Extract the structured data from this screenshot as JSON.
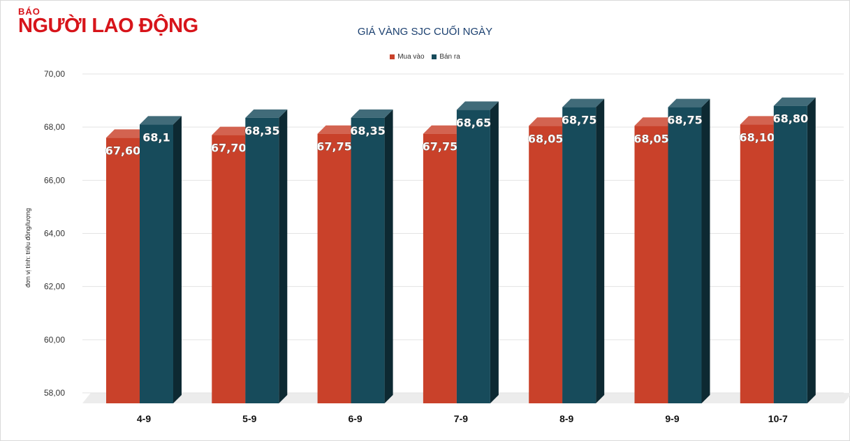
{
  "logo": {
    "top": "BÁO",
    "main": "NGƯỜI LAO ĐỘNG"
  },
  "colors": {
    "buy": "#c9412a",
    "sell": "#174b5b",
    "title": "#1a3f6f",
    "logo": "#d7141a"
  },
  "chart_data": {
    "type": "bar",
    "title": "GIÁ VÀNG SJC CUỐI NGÀY",
    "xlabel": "",
    "ylabel": "đơn vị tính: triệu đồng/lượng",
    "ylim": [
      58,
      70
    ],
    "yticks": [
      "70,00",
      "68,00",
      "66,00",
      "64,00",
      "62,00",
      "60,00",
      "58,00"
    ],
    "grid": true,
    "legend_position": "top-center",
    "categories": [
      "4-9",
      "5-9",
      "6-9",
      "7-9",
      "8-9",
      "9-9",
      "10-7"
    ],
    "series": [
      {
        "name": "Mua vào",
        "values": [
          67.6,
          67.7,
          67.75,
          67.75,
          68.05,
          68.05,
          68.1
        ],
        "labels": [
          "67,60",
          "67,70",
          "67,75",
          "67,75",
          "68,05",
          "68,05",
          "68,10"
        ]
      },
      {
        "name": "Bán ra",
        "values": [
          68.1,
          68.35,
          68.35,
          68.65,
          68.75,
          68.75,
          68.8
        ],
        "labels": [
          "68,1",
          "68,35",
          "68,35",
          "68,65",
          "68,75",
          "68,75",
          "68,80"
        ]
      }
    ]
  }
}
